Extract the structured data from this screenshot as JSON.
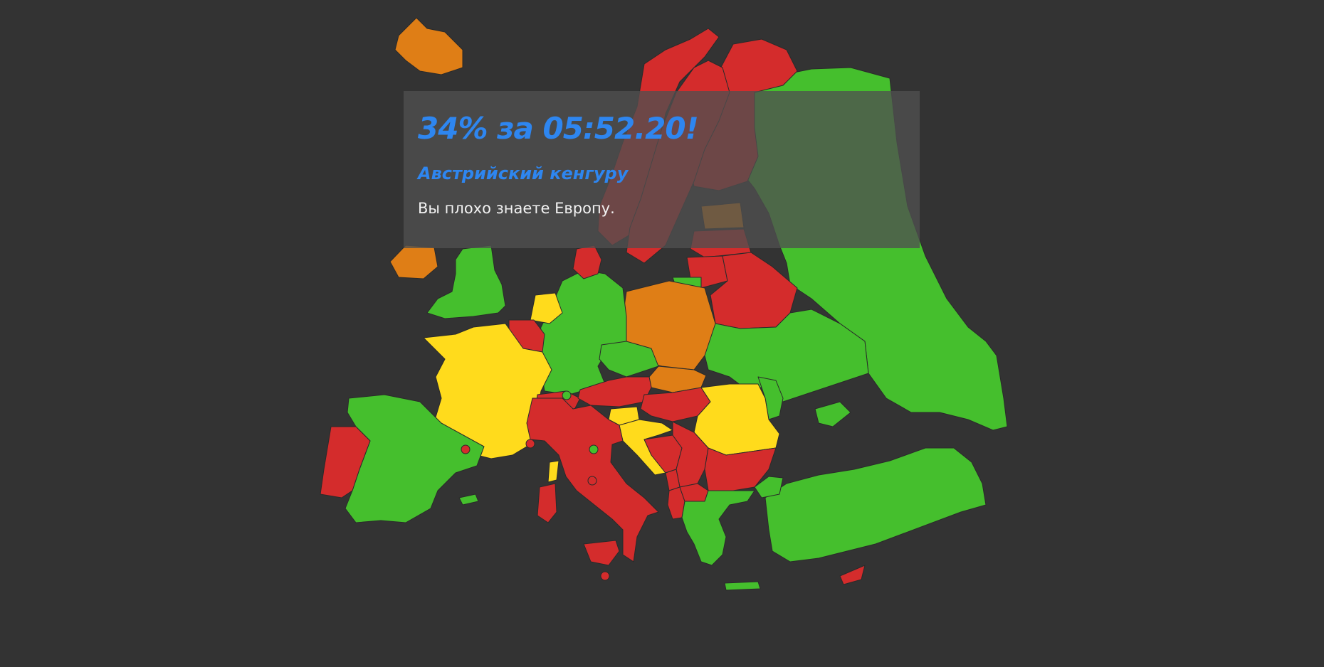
{
  "result": {
    "score_text": "34% за 05:52.20!",
    "rank_title": "Австрийский кенгуру",
    "verdict": "Вы плохо знаете Европу."
  },
  "colors": {
    "background": "#333333",
    "accent_text": "#2e86f0",
    "correct_first_try": "#45bf2d",
    "correct_second_try": "#ffdb1c",
    "correct_third_try": "#df7e16",
    "failed": "#d42c2c"
  },
  "map": {
    "countries": [
      {
        "name": "iceland",
        "status": "correct_third_try"
      },
      {
        "name": "norway",
        "status": "failed"
      },
      {
        "name": "sweden",
        "status": "failed"
      },
      {
        "name": "finland",
        "status": "failed"
      },
      {
        "name": "russia",
        "status": "correct_first_try"
      },
      {
        "name": "estonia",
        "status": "correct_third_try"
      },
      {
        "name": "latvia",
        "status": "failed"
      },
      {
        "name": "lithuania",
        "status": "failed"
      },
      {
        "name": "belarus",
        "status": "failed"
      },
      {
        "name": "ireland",
        "status": "correct_third_try"
      },
      {
        "name": "united-kingdom",
        "status": "correct_first_try"
      },
      {
        "name": "denmark",
        "status": "failed"
      },
      {
        "name": "netherlands",
        "status": "correct_second_try"
      },
      {
        "name": "belgium",
        "status": "failed"
      },
      {
        "name": "germany",
        "status": "correct_first_try"
      },
      {
        "name": "poland",
        "status": "correct_third_try"
      },
      {
        "name": "kaliningrad",
        "status": "correct_first_try"
      },
      {
        "name": "ukraine",
        "status": "correct_first_try"
      },
      {
        "name": "france",
        "status": "correct_second_try"
      },
      {
        "name": "czechia",
        "status": "correct_first_try"
      },
      {
        "name": "slovakia",
        "status": "correct_third_try"
      },
      {
        "name": "austria",
        "status": "failed"
      },
      {
        "name": "switzerland",
        "status": "failed"
      },
      {
        "name": "hungary",
        "status": "failed"
      },
      {
        "name": "slovenia",
        "status": "correct_second_try"
      },
      {
        "name": "croatia",
        "status": "correct_second_try"
      },
      {
        "name": "romania",
        "status": "correct_second_try"
      },
      {
        "name": "moldova",
        "status": "correct_first_try"
      },
      {
        "name": "italy",
        "status": "failed"
      },
      {
        "name": "bosnia",
        "status": "failed"
      },
      {
        "name": "serbia",
        "status": "failed"
      },
      {
        "name": "montenegro",
        "status": "failed"
      },
      {
        "name": "albania",
        "status": "failed"
      },
      {
        "name": "north-macedonia",
        "status": "failed"
      },
      {
        "name": "bulgaria",
        "status": "failed"
      },
      {
        "name": "greece",
        "status": "correct_first_try"
      },
      {
        "name": "turkey",
        "status": "correct_first_try"
      },
      {
        "name": "spain",
        "status": "correct_first_try"
      },
      {
        "name": "portugal",
        "status": "failed"
      },
      {
        "name": "sardinia",
        "status": "failed"
      },
      {
        "name": "corsica",
        "status": "correct_second_try"
      },
      {
        "name": "sicily",
        "status": "failed"
      },
      {
        "name": "cyprus",
        "status": "failed"
      },
      {
        "name": "crete",
        "status": "correct_first_try"
      },
      {
        "name": "balearic-islands",
        "status": "correct_first_try"
      }
    ],
    "microstates": [
      {
        "name": "liechtenstein",
        "status": "correct_first_try"
      },
      {
        "name": "andorra",
        "status": "failed"
      },
      {
        "name": "monaco",
        "status": "failed"
      },
      {
        "name": "san-marino",
        "status": "correct_first_try"
      },
      {
        "name": "vatican",
        "status": "failed"
      },
      {
        "name": "malta",
        "status": "failed"
      }
    ]
  }
}
